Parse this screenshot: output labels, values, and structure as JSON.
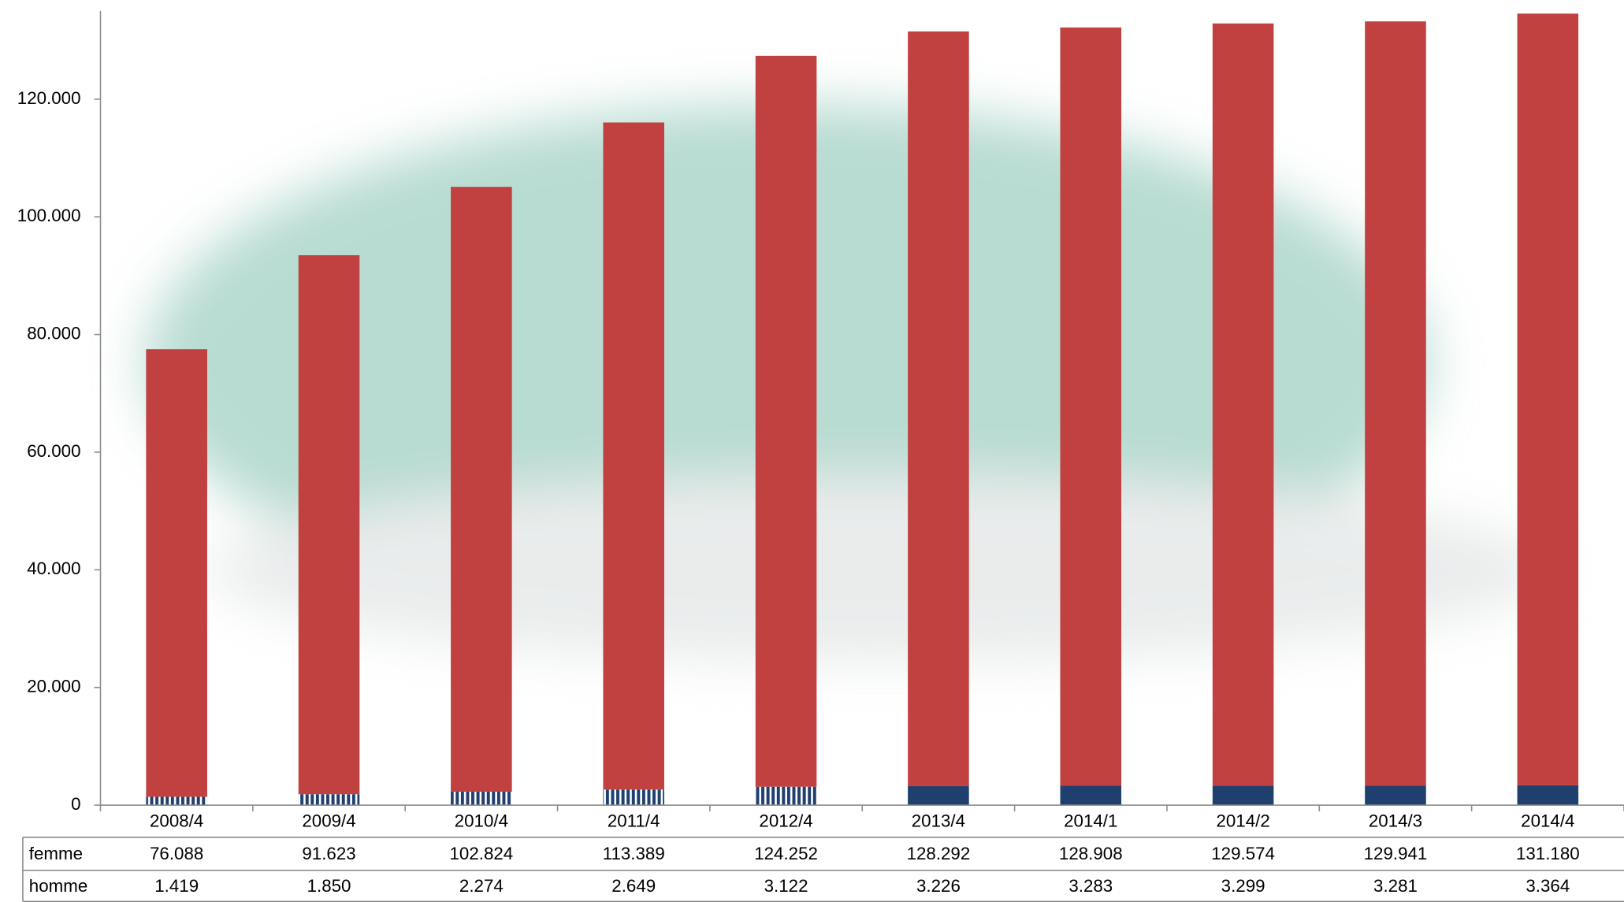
{
  "chart_data": {
    "type": "stacked-bar",
    "categories": [
      "2008/4",
      "2009/4",
      "2010/4",
      "2011/4",
      "2012/4",
      "2013/4",
      "2014/1",
      "2014/2",
      "2014/3",
      "2014/4"
    ],
    "series": [
      {
        "name": "femme",
        "color": "#c0413f",
        "values": [
          76088,
          91623,
          102824,
          113389,
          124252,
          128292,
          128908,
          129574,
          129941,
          131180
        ],
        "value_labels": [
          "76.088",
          "91.623",
          "102.824",
          "113.389",
          "124.252",
          "128.292",
          "128.908",
          "129.574",
          "129.941",
          "131.180"
        ]
      },
      {
        "name": "homme",
        "color": "#1f3f6e",
        "hatched": [
          true,
          true,
          true,
          true,
          true,
          false,
          false,
          false,
          false,
          false
        ],
        "values": [
          1419,
          1850,
          2274,
          2649,
          3122,
          3226,
          3283,
          3299,
          3281,
          3364
        ],
        "value_labels": [
          "1.419",
          "1.850",
          "2.274",
          "2.649",
          "3.122",
          "3.226",
          "3.283",
          "3.299",
          "3.281",
          "3.364"
        ]
      }
    ],
    "ylim": [
      0,
      135000
    ],
    "yticks": [
      0,
      {
        "value": 20000,
        "label": "20.000"
      },
      {
        "value": 40000,
        "label": "40.000"
      },
      {
        "value": 60000,
        "label": "60.000"
      },
      {
        "value": 80000,
        "label": "80.000"
      },
      {
        "value": 100000,
        "label": "100.000"
      },
      {
        "value": 120000,
        "label": "120.000"
      }
    ],
    "data_table": true
  }
}
